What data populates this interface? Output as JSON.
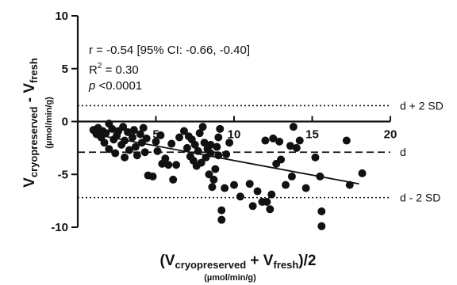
{
  "chart_data": {
    "type": "scatter",
    "xlim": [
      0,
      20
    ],
    "ylim": [
      -10,
      10
    ],
    "x_ticks": [
      "5",
      "10",
      "15",
      "20"
    ],
    "y_ticks": [
      "10",
      "5",
      "0",
      "-5",
      "-10"
    ],
    "xlabel": {
      "prefix": "(V",
      "sub1": "cryopreserved",
      "mid": " + V",
      "sub2": "fresh",
      "suffix": ")/2",
      "unit": "(µmol/min/g)"
    },
    "ylabel": {
      "v1": "V",
      "sub1": "cryopreserved",
      "mid": " - V",
      "sub2": "fresh",
      "unit": "(µmol/min/g)"
    },
    "stats": {
      "r_text": "r = -0.54 [95% CI: -0.66, -0.40]",
      "r2_prefix": "R",
      "r2_sup": "2",
      "r2_value": " = 0.30",
      "p_italic": "p",
      "p_value": " <0.0001"
    },
    "reference_lines": [
      {
        "label": "d + 2 SD",
        "y": 1.5,
        "style": "dotted"
      },
      {
        "label": "d",
        "y": -2.9,
        "style": "dashed"
      },
      {
        "label": "d - 2 SD",
        "y": -7.2,
        "style": "dotted"
      }
    ],
    "regression": {
      "x": [
        1.0,
        18.0
      ],
      "y": [
        -1.2,
        -5.9
      ]
    },
    "points": [
      [
        1.0,
        -0.8
      ],
      [
        1.2,
        -1.2
      ],
      [
        1.3,
        -0.6
      ],
      [
        1.5,
        -1.5
      ],
      [
        1.6,
        -0.9
      ],
      [
        1.7,
        -2.0
      ],
      [
        1.8,
        -1.1
      ],
      [
        2.0,
        -0.2
      ],
      [
        2.0,
        -2.6
      ],
      [
        2.2,
        -0.7
      ],
      [
        2.3,
        -1.7
      ],
      [
        2.4,
        -3.0
      ],
      [
        2.5,
        -1.3
      ],
      [
        2.6,
        -0.9
      ],
      [
        2.8,
        -2.2
      ],
      [
        2.9,
        -0.5
      ],
      [
        3.0,
        -1.8
      ],
      [
        3.0,
        -3.4
      ],
      [
        3.2,
        -1.0
      ],
      [
        3.3,
        -2.7
      ],
      [
        3.5,
        -1.5
      ],
      [
        3.6,
        -0.8
      ],
      [
        3.7,
        -2.4
      ],
      [
        3.8,
        -3.2
      ],
      [
        4.0,
        -1.2
      ],
      [
        4.1,
        -2.0
      ],
      [
        4.2,
        -0.6
      ],
      [
        4.3,
        -2.9
      ],
      [
        4.4,
        -1.6
      ],
      [
        4.5,
        -5.1
      ],
      [
        4.8,
        -5.2
      ],
      [
        5.0,
        -1.9
      ],
      [
        5.1,
        -2.8
      ],
      [
        5.3,
        -1.3
      ],
      [
        5.4,
        -4.0
      ],
      [
        5.6,
        -3.5
      ],
      [
        5.8,
        -4.1
      ],
      [
        6.0,
        -2.1
      ],
      [
        6.1,
        -5.5
      ],
      [
        6.3,
        -4.1
      ],
      [
        6.5,
        -1.5
      ],
      [
        6.8,
        -0.9
      ],
      [
        7.0,
        -2.5
      ],
      [
        7.1,
        -1.4
      ],
      [
        7.2,
        -3.3
      ],
      [
        7.3,
        -1.7
      ],
      [
        7.4,
        -3.7
      ],
      [
        7.5,
        -2.2
      ],
      [
        7.6,
        -4.2
      ],
      [
        7.7,
        -2.8
      ],
      [
        7.8,
        -1.1
      ],
      [
        7.9,
        -3.9
      ],
      [
        8.0,
        -0.5
      ],
      [
        8.1,
        -2.0
      ],
      [
        8.2,
        -3.4
      ],
      [
        8.3,
        -2.6
      ],
      [
        8.4,
        -5.0
      ],
      [
        8.5,
        -2.2
      ],
      [
        8.5,
        -3.0
      ],
      [
        8.6,
        -6.2
      ],
      [
        8.7,
        -5.5
      ],
      [
        8.8,
        -4.5
      ],
      [
        8.9,
        -2.4
      ],
      [
        9.0,
        -1.5
      ],
      [
        9.0,
        -3.2
      ],
      [
        9.1,
        -0.7
      ],
      [
        9.2,
        -9.3
      ],
      [
        9.2,
        -8.4
      ],
      [
        9.4,
        -6.3
      ],
      [
        9.5,
        -3.1
      ],
      [
        9.7,
        -2.0
      ],
      [
        10.0,
        -6.0
      ],
      [
        10.4,
        -7.1
      ],
      [
        11.0,
        -5.9
      ],
      [
        11.2,
        -8.0
      ],
      [
        11.5,
        -6.6
      ],
      [
        11.8,
        -7.6
      ],
      [
        12.0,
        -1.8
      ],
      [
        12.1,
        -7.6
      ],
      [
        12.3,
        -8.3
      ],
      [
        12.4,
        -6.9
      ],
      [
        12.5,
        -1.6
      ],
      [
        12.7,
        -4.0
      ],
      [
        12.9,
        -1.9
      ],
      [
        13.0,
        -3.6
      ],
      [
        13.3,
        -6.0
      ],
      [
        13.6,
        -2.3
      ],
      [
        13.7,
        -5.2
      ],
      [
        13.8,
        -0.5
      ],
      [
        14.0,
        -2.5
      ],
      [
        14.2,
        -1.8
      ],
      [
        14.6,
        -6.3
      ],
      [
        15.2,
        -3.4
      ],
      [
        15.5,
        -5.2
      ],
      [
        15.6,
        -8.5
      ],
      [
        15.6,
        -9.9
      ],
      [
        17.2,
        -1.8
      ],
      [
        17.4,
        -6.0
      ],
      [
        18.2,
        -4.9
      ]
    ]
  }
}
